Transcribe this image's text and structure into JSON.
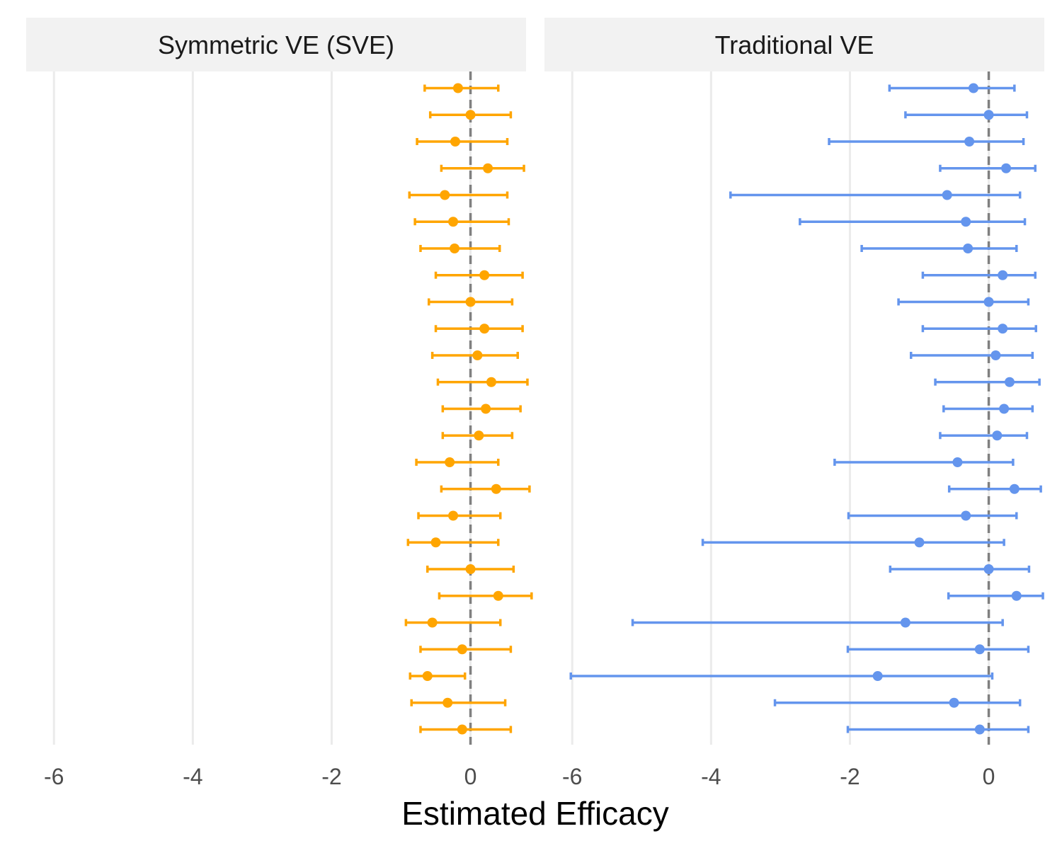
{
  "chart_data": {
    "type": "scatter",
    "subtype": "faceted forest plot (point estimates with confidence intervals)",
    "xlabel": "Estimated Efficacy",
    "ylabel": "",
    "xlim": [
      -6.4,
      0.8
    ],
    "xticks": [
      -6,
      -4,
      -2,
      0
    ],
    "reference_line": {
      "x": 0,
      "style": "dashed",
      "color": "#808080"
    },
    "grid": "vertical major gridlines only",
    "legend": "none",
    "panels": [
      {
        "name": "Symmetric VE (SVE)",
        "color": "#FFA500",
        "points": [
          {
            "est": -0.18,
            "lo": -0.66,
            "hi": 0.4
          },
          {
            "est": 0.0,
            "lo": -0.58,
            "hi": 0.58
          },
          {
            "est": -0.22,
            "lo": -0.77,
            "hi": 0.53
          },
          {
            "est": 0.25,
            "lo": -0.42,
            "hi": 0.77
          },
          {
            "est": -0.37,
            "lo": -0.88,
            "hi": 0.53
          },
          {
            "est": -0.25,
            "lo": -0.8,
            "hi": 0.55
          },
          {
            "est": -0.23,
            "lo": -0.72,
            "hi": 0.42
          },
          {
            "est": 0.2,
            "lo": -0.5,
            "hi": 0.75
          },
          {
            "est": 0.0,
            "lo": -0.6,
            "hi": 0.6
          },
          {
            "est": 0.2,
            "lo": -0.5,
            "hi": 0.75
          },
          {
            "est": 0.1,
            "lo": -0.55,
            "hi": 0.68
          },
          {
            "est": 0.3,
            "lo": -0.47,
            "hi": 0.82
          },
          {
            "est": 0.22,
            "lo": -0.4,
            "hi": 0.72
          },
          {
            "est": 0.12,
            "lo": -0.4,
            "hi": 0.6
          },
          {
            "est": -0.3,
            "lo": -0.78,
            "hi": 0.4
          },
          {
            "est": 0.37,
            "lo": -0.42,
            "hi": 0.85
          },
          {
            "est": -0.25,
            "lo": -0.75,
            "hi": 0.43
          },
          {
            "est": -0.5,
            "lo": -0.9,
            "hi": 0.4
          },
          {
            "est": 0.0,
            "lo": -0.62,
            "hi": 0.62
          },
          {
            "est": 0.4,
            "lo": -0.45,
            "hi": 0.88
          },
          {
            "est": -0.55,
            "lo": -0.93,
            "hi": 0.43
          },
          {
            "est": -0.12,
            "lo": -0.72,
            "hi": 0.58
          },
          {
            "est": -0.62,
            "lo": -0.87,
            "hi": -0.08
          },
          {
            "est": -0.33,
            "lo": -0.85,
            "hi": 0.5
          },
          {
            "est": -0.12,
            "lo": -0.72,
            "hi": 0.58
          }
        ]
      },
      {
        "name": "Traditional VE",
        "color": "#6495ED",
        "points": [
          {
            "est": -0.22,
            "lo": -1.43,
            "hi": 0.37
          },
          {
            "est": 0.0,
            "lo": -1.2,
            "hi": 0.55
          },
          {
            "est": -0.28,
            "lo": -2.3,
            "hi": 0.5
          },
          {
            "est": 0.25,
            "lo": -0.7,
            "hi": 0.67
          },
          {
            "est": -0.6,
            "lo": -3.72,
            "hi": 0.45
          },
          {
            "est": -0.33,
            "lo": -2.72,
            "hi": 0.52
          },
          {
            "est": -0.3,
            "lo": -1.83,
            "hi": 0.4
          },
          {
            "est": 0.2,
            "lo": -0.95,
            "hi": 0.67
          },
          {
            "est": 0.0,
            "lo": -1.3,
            "hi": 0.57
          },
          {
            "est": 0.2,
            "lo": -0.95,
            "hi": 0.68
          },
          {
            "est": 0.1,
            "lo": -1.12,
            "hi": 0.63
          },
          {
            "est": 0.3,
            "lo": -0.77,
            "hi": 0.73
          },
          {
            "est": 0.22,
            "lo": -0.65,
            "hi": 0.63
          },
          {
            "est": 0.12,
            "lo": -0.7,
            "hi": 0.55
          },
          {
            "est": -0.45,
            "lo": -2.22,
            "hi": 0.35
          },
          {
            "est": 0.37,
            "lo": -0.57,
            "hi": 0.75
          },
          {
            "est": -0.33,
            "lo": -2.02,
            "hi": 0.4
          },
          {
            "est": -1.0,
            "lo": -4.12,
            "hi": 0.22
          },
          {
            "est": 0.0,
            "lo": -1.42,
            "hi": 0.58
          },
          {
            "est": 0.4,
            "lo": -0.58,
            "hi": 0.78
          },
          {
            "est": -1.2,
            "lo": -5.13,
            "hi": 0.2
          },
          {
            "est": -0.13,
            "lo": -2.03,
            "hi": 0.57
          },
          {
            "est": -1.6,
            "lo": -6.02,
            "hi": 0.05
          },
          {
            "est": -0.5,
            "lo": -3.08,
            "hi": 0.45
          },
          {
            "est": -0.13,
            "lo": -2.03,
            "hi": 0.57
          }
        ]
      }
    ]
  }
}
